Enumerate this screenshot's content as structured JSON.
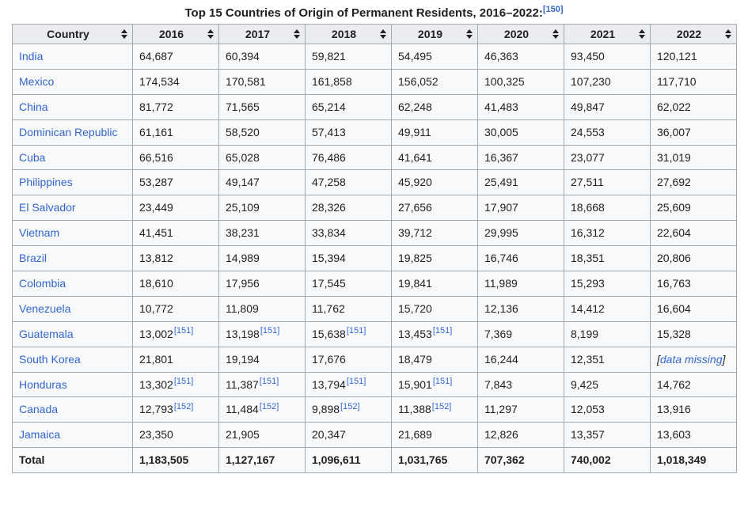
{
  "title": {
    "text": "Top 15 Countries of Origin of Permanent Residents, 2016–2022:",
    "ref": "[150]"
  },
  "colors": {
    "link_blue": "#3366cc",
    "header_background": "#eaecf0",
    "row_background": "#f8f9fa",
    "border": "#a2a9b1",
    "text": "#202122"
  },
  "icons": {
    "sort": "sort-ascending-descending-arrows"
  },
  "table": {
    "columns": [
      "Country",
      "2016",
      "2017",
      "2018",
      "2019",
      "2020",
      "2021",
      "2022"
    ],
    "missing_wrap": [
      "[",
      "]"
    ],
    "rows": [
      {
        "country": "India",
        "cells": [
          {
            "v": "64,687"
          },
          {
            "v": "60,394"
          },
          {
            "v": "59,821"
          },
          {
            "v": "54,495"
          },
          {
            "v": "46,363"
          },
          {
            "v": "93,450"
          },
          {
            "v": "120,121"
          }
        ]
      },
      {
        "country": "Mexico",
        "cells": [
          {
            "v": "174,534"
          },
          {
            "v": "170,581"
          },
          {
            "v": "161,858"
          },
          {
            "v": "156,052"
          },
          {
            "v": "100,325"
          },
          {
            "v": "107,230"
          },
          {
            "v": "117,710"
          }
        ]
      },
      {
        "country": "China",
        "cells": [
          {
            "v": "81,772"
          },
          {
            "v": "71,565"
          },
          {
            "v": "65,214"
          },
          {
            "v": "62,248"
          },
          {
            "v": "41,483"
          },
          {
            "v": "49,847"
          },
          {
            "v": "62,022"
          }
        ]
      },
      {
        "country": "Dominican Republic",
        "cells": [
          {
            "v": "61,161"
          },
          {
            "v": "58,520"
          },
          {
            "v": "57,413"
          },
          {
            "v": "49,911"
          },
          {
            "v": "30,005"
          },
          {
            "v": "24,553"
          },
          {
            "v": "36,007"
          }
        ]
      },
      {
        "country": "Cuba",
        "cells": [
          {
            "v": "66,516"
          },
          {
            "v": "65,028"
          },
          {
            "v": "76,486"
          },
          {
            "v": "41,641"
          },
          {
            "v": "16,367"
          },
          {
            "v": "23,077"
          },
          {
            "v": "31,019"
          }
        ]
      },
      {
        "country": "Philippines",
        "cells": [
          {
            "v": "53,287"
          },
          {
            "v": "49,147"
          },
          {
            "v": "47,258"
          },
          {
            "v": "45,920"
          },
          {
            "v": "25,491"
          },
          {
            "v": "27,511"
          },
          {
            "v": "27,692"
          }
        ]
      },
      {
        "country": "El Salvador",
        "cells": [
          {
            "v": "23,449"
          },
          {
            "v": "25,109"
          },
          {
            "v": "28,326"
          },
          {
            "v": "27,656"
          },
          {
            "v": "17,907"
          },
          {
            "v": "18,668"
          },
          {
            "v": "25,609"
          }
        ]
      },
      {
        "country": "Vietnam",
        "cells": [
          {
            "v": "41,451"
          },
          {
            "v": "38,231"
          },
          {
            "v": "33,834"
          },
          {
            "v": "39,712"
          },
          {
            "v": "29,995"
          },
          {
            "v": "16,312"
          },
          {
            "v": "22,604"
          }
        ]
      },
      {
        "country": "Brazil",
        "cells": [
          {
            "v": "13,812"
          },
          {
            "v": "14,989"
          },
          {
            "v": "15,394"
          },
          {
            "v": "19,825"
          },
          {
            "v": "16,746"
          },
          {
            "v": "18,351"
          },
          {
            "v": "20,806"
          }
        ]
      },
      {
        "country": "Colombia",
        "cells": [
          {
            "v": "18,610"
          },
          {
            "v": "17,956"
          },
          {
            "v": "17,545"
          },
          {
            "v": "19,841"
          },
          {
            "v": "11,989"
          },
          {
            "v": "15,293"
          },
          {
            "v": "16,763"
          }
        ]
      },
      {
        "country": "Venezuela",
        "cells": [
          {
            "v": "10,772"
          },
          {
            "v": "11,809"
          },
          {
            "v": "11,762"
          },
          {
            "v": "15,720"
          },
          {
            "v": "12,136"
          },
          {
            "v": "14,412"
          },
          {
            "v": "16,604"
          }
        ]
      },
      {
        "country": "Guatemala",
        "cells": [
          {
            "v": "13,002",
            "ref": "[151]"
          },
          {
            "v": "13,198",
            "ref": "[151]"
          },
          {
            "v": "15,638",
            "ref": "[151]"
          },
          {
            "v": "13,453",
            "ref": "[151]"
          },
          {
            "v": "7,369"
          },
          {
            "v": "8,199"
          },
          {
            "v": "15,328"
          }
        ]
      },
      {
        "country": "South Korea",
        "cells": [
          {
            "v": "21,801"
          },
          {
            "v": "19,194"
          },
          {
            "v": "17,676"
          },
          {
            "v": "18,479"
          },
          {
            "v": "16,244"
          },
          {
            "v": "12,351"
          },
          {
            "missing": "data missing"
          }
        ]
      },
      {
        "country": "Honduras",
        "cells": [
          {
            "v": "13,302",
            "ref": "[151]"
          },
          {
            "v": "11,387",
            "ref": "[151]"
          },
          {
            "v": "13,794",
            "ref": "[151]"
          },
          {
            "v": "15,901",
            "ref": "[151]"
          },
          {
            "v": "7,843"
          },
          {
            "v": "9,425"
          },
          {
            "v": "14,762"
          }
        ]
      },
      {
        "country": "Canada",
        "cells": [
          {
            "v": "12,793",
            "ref": "[152]"
          },
          {
            "v": "11,484",
            "ref": "[152]"
          },
          {
            "v": "9,898",
            "ref": "[152]"
          },
          {
            "v": "11,388",
            "ref": "[152]"
          },
          {
            "v": "11,297"
          },
          {
            "v": "12,053"
          },
          {
            "v": "13,916"
          }
        ]
      },
      {
        "country": "Jamaica",
        "cells": [
          {
            "v": "23,350"
          },
          {
            "v": "21,905"
          },
          {
            "v": "20,347"
          },
          {
            "v": "21,689"
          },
          {
            "v": "12,826"
          },
          {
            "v": "13,357"
          },
          {
            "v": "13,603"
          }
        ]
      }
    ],
    "total": {
      "label": "Total",
      "values": [
        "1,183,505",
        "1,127,167",
        "1,096,611",
        "1,031,765",
        "707,362",
        "740,002",
        "1,018,349"
      ]
    }
  }
}
